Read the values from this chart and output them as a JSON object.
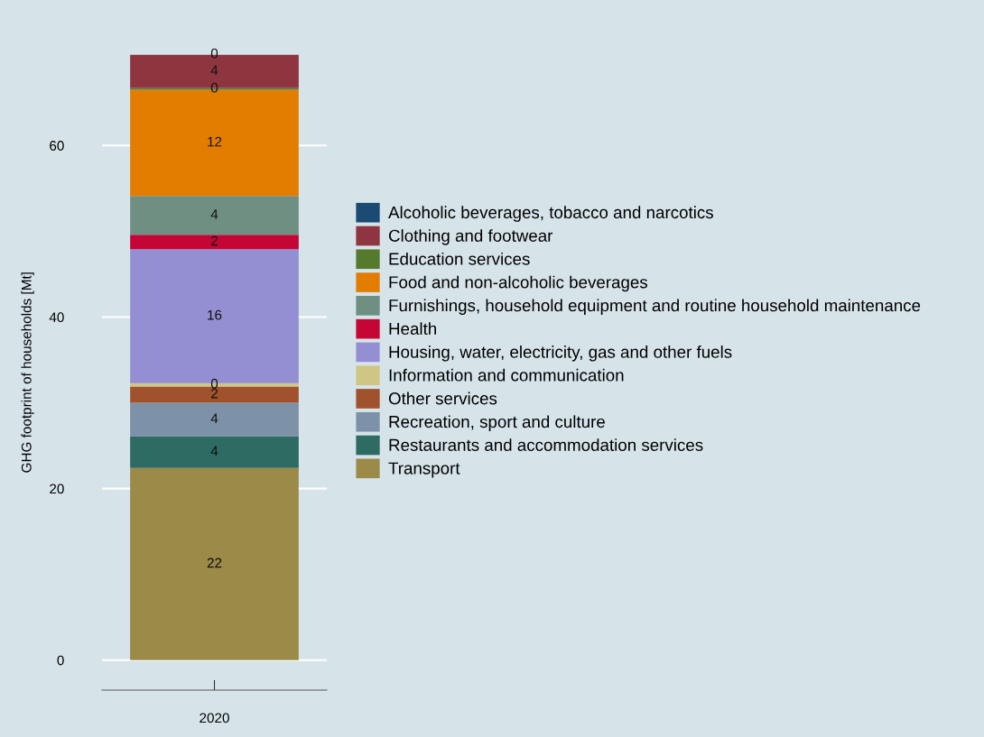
{
  "chart_data": {
    "type": "bar",
    "stacked": true,
    "ylabel": "GHG footprint of households [Mt]",
    "categories": [
      "2020"
    ],
    "series": [
      {
        "name": "Transport",
        "color": "#9c8a48",
        "values": [
          22.4
        ],
        "value_labels": [
          "22"
        ]
      },
      {
        "name": "Restaurants and accommodation services",
        "color": "#2e6b63",
        "values": [
          3.7
        ],
        "value_labels": [
          "4"
        ]
      },
      {
        "name": "Recreation, sport and culture",
        "color": "#7d92a8",
        "values": [
          3.9
        ],
        "value_labels": [
          "4"
        ]
      },
      {
        "name": "Other services",
        "color": "#a0522d",
        "values": [
          1.9
        ],
        "value_labels": [
          "2"
        ]
      },
      {
        "name": "Information and communication",
        "color": "#cfc584",
        "values": [
          0.4
        ],
        "value_labels": [
          "0"
        ]
      },
      {
        "name": "Housing, water, electricity, gas and other fuels",
        "color": "#948fd2",
        "values": [
          15.6
        ],
        "value_labels": [
          "16"
        ]
      },
      {
        "name": "Health",
        "color": "#c40535",
        "values": [
          1.7
        ],
        "value_labels": [
          "2"
        ]
      },
      {
        "name": "Furnishings, household equipment and routine household maintenance",
        "color": "#6e8f82",
        "values": [
          4.5
        ],
        "value_labels": [
          "4"
        ]
      },
      {
        "name": "Food and non-alcoholic beverages",
        "color": "#e27d00",
        "values": [
          12.4
        ],
        "value_labels": [
          "12"
        ]
      },
      {
        "name": "Education services",
        "color": "#557a2e",
        "values": [
          0.2
        ],
        "value_labels": [
          "0"
        ]
      },
      {
        "name": "Clothing and footwear",
        "color": "#8e3540",
        "values": [
          3.9
        ],
        "value_labels": [
          "4"
        ]
      },
      {
        "name": "Alcoholic beverages, tobacco and narcotics",
        "color": "#1b4a72",
        "values": [
          0
        ],
        "value_labels": [
          "0"
        ]
      }
    ],
    "ylim": [
      -3.5,
      70.6
    ],
    "yticks": [
      0,
      20,
      40,
      60
    ],
    "grid": "y",
    "legend": "right"
  }
}
